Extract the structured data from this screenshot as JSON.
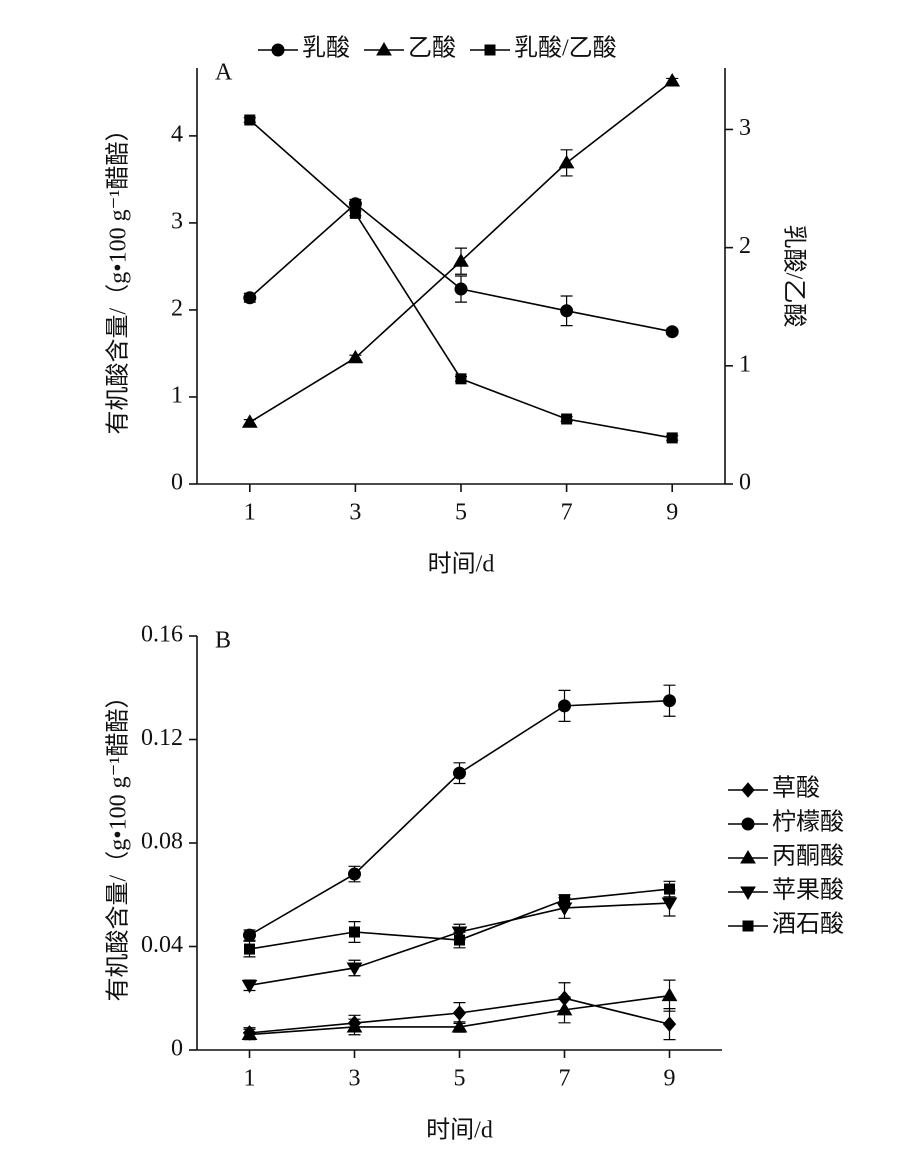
{
  "chart_data": [
    {
      "type": "line",
      "label": "A",
      "x": [
        1,
        3,
        5,
        7,
        9
      ],
      "xlim": [
        0,
        10
      ],
      "xticks": [
        1,
        3,
        5,
        7,
        9
      ],
      "x_label": "时间/d",
      "ylim": [
        0,
        4.78
      ],
      "yticks": [
        0,
        1,
        2,
        3,
        4
      ],
      "y_label": "有机酸含量/（g•100 g⁻¹醋醅）",
      "y2lim": [
        0,
        3.52
      ],
      "y2ticks": [
        0,
        1,
        2,
        3
      ],
      "y2_label": "乳酸/乙酸",
      "legend": "top",
      "series": [
        {
          "name": "乳酸",
          "color": "#000000",
          "marker": "circle",
          "values": [
            2.14,
            3.22,
            2.24,
            1.99,
            1.75
          ],
          "errors": [
            0.05,
            0.05,
            0.15,
            0.17,
            0.03
          ]
        },
        {
          "name": "乙酸",
          "color": "#000000",
          "marker": "triangle",
          "values": [
            0.71,
            1.45,
            2.56,
            3.69,
            4.63
          ],
          "errors": [
            0.03,
            0.03,
            0.15,
            0.15,
            0.03
          ]
        },
        {
          "name": "乳酸/乙酸",
          "color": "#000000",
          "marker": "square",
          "axis": "y2",
          "values": [
            3.08,
            2.29,
            0.89,
            0.55,
            0.39
          ],
          "errors": [
            0.02,
            0.02,
            0.02,
            0.02,
            0.02
          ]
        }
      ]
    },
    {
      "type": "line",
      "label": "B",
      "x": [
        1,
        3,
        5,
        7,
        9
      ],
      "xlim": [
        0,
        10
      ],
      "xticks": [
        1,
        3,
        5,
        7,
        9
      ],
      "x_label": "时间/d",
      "ylim": [
        0,
        0.16
      ],
      "yticks": [
        0,
        0.04,
        0.08,
        0.12,
        0.16
      ],
      "y_label": "有机酸含量/（g•100 g⁻¹醋醅）",
      "legend": "right",
      "series": [
        {
          "name": "草酸",
          "color": "#000000",
          "marker": "diamond",
          "values": [
            0.0066,
            0.0104,
            0.0143,
            0.02,
            0.01
          ],
          "errors": [
            0.002,
            0.003,
            0.004,
            0.006,
            0.006
          ]
        },
        {
          "name": "柠檬酸",
          "color": "#000000",
          "marker": "circle",
          "values": [
            0.0444,
            0.068,
            0.107,
            0.133,
            0.135
          ],
          "errors": [
            0.002,
            0.003,
            0.004,
            0.006,
            0.006
          ]
        },
        {
          "name": "丙酮酸",
          "color": "#000000",
          "marker": "triangle",
          "values": [
            0.006,
            0.0089,
            0.0089,
            0.0155,
            0.021
          ],
          "errors": [
            0.002,
            0.003,
            0.002,
            0.005,
            0.006
          ]
        },
        {
          "name": "苹果酸",
          "color": "#000000",
          "marker": "triangle-down",
          "values": [
            0.025,
            0.0317,
            0.0456,
            0.0549,
            0.0568
          ],
          "errors": [
            0.002,
            0.003,
            0.003,
            0.004,
            0.005
          ]
        },
        {
          "name": "酒石酸",
          "color": "#000000",
          "marker": "square",
          "values": [
            0.039,
            0.0456,
            0.0425,
            0.058,
            0.0622
          ],
          "errors": [
            0.003,
            0.004,
            0.003,
            0.002,
            0.003
          ]
        }
      ]
    }
  ]
}
